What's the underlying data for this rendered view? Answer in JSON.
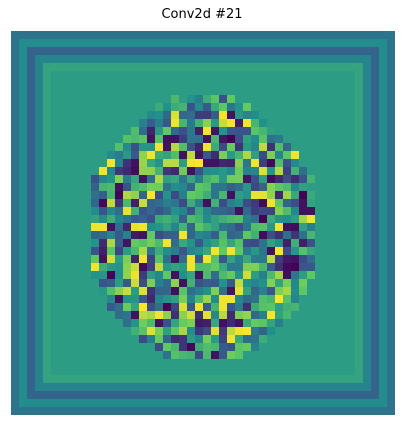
{
  "figure": {
    "title": "Conv2d #21",
    "image_kind": "feature-map-heatmap",
    "colormap": "viridis",
    "colormap_stops": [
      "#440154",
      "#3b528b",
      "#21918c",
      "#5ec962",
      "#fde725"
    ],
    "background": "#ffffff",
    "axes": "off"
  }
}
